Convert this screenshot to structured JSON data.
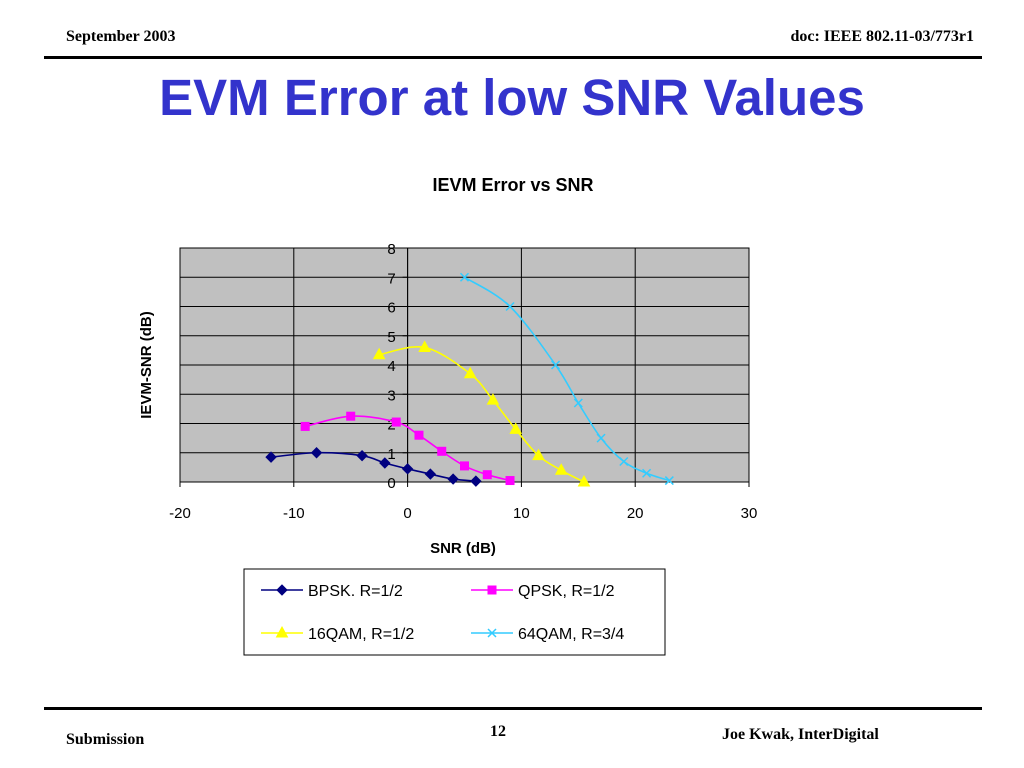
{
  "header": {
    "date": "September 2003",
    "doc": "doc: IEEE 802.11-03/773r1"
  },
  "slide": {
    "title": "EVM Error at low SNR Values"
  },
  "footer": {
    "left": "Submission",
    "page": "12",
    "author": "Joe Kwak, InterDigital"
  },
  "chart_data": {
    "type": "line",
    "title": "IEVM Error vs  SNR",
    "xlabel": "SNR (dB)",
    "ylabel": "IEVM-SNR (dB)",
    "xlim": [
      -20,
      30
    ],
    "ylim": [
      0,
      8
    ],
    "xticks": [
      "-20",
      "-10",
      "0",
      "10",
      "20",
      "30"
    ],
    "yticks": [
      "0",
      "1",
      "2",
      "3",
      "4",
      "5",
      "6",
      "7",
      "8"
    ],
    "grid": "horizontal and vertical",
    "plot_background": "#c0c0c0",
    "legend_position": "bottom",
    "series": [
      {
        "name": "BPSK. R=1/2",
        "color": "#000080",
        "marker": "diamond",
        "x": [
          -12,
          -8,
          -4,
          -2,
          0,
          2,
          4,
          6
        ],
        "y": [
          0.85,
          1.0,
          0.9,
          0.65,
          0.45,
          0.27,
          0.1,
          0.03
        ]
      },
      {
        "name": "QPSK, R=1/2",
        "color": "#ff00ff",
        "marker": "square",
        "x": [
          -9,
          -5,
          -1,
          1,
          3,
          5,
          7,
          9
        ],
        "y": [
          1.9,
          2.25,
          2.05,
          1.6,
          1.05,
          0.55,
          0.25,
          0.05
        ]
      },
      {
        "name": "16QAM, R=1/2",
        "color": "#ffff00",
        "marker": "triangle",
        "x": [
          -2.5,
          1.5,
          5.5,
          7.5,
          9.5,
          11.5,
          13.5,
          15.5
        ],
        "y": [
          4.35,
          4.6,
          3.7,
          2.8,
          1.8,
          0.9,
          0.4,
          0.0
        ]
      },
      {
        "name": "64QAM, R=3/4",
        "color": "#33ccff",
        "marker": "x",
        "x": [
          5,
          9,
          13,
          15,
          17,
          19,
          21,
          23
        ],
        "y": [
          7.0,
          6.0,
          4.0,
          2.7,
          1.5,
          0.7,
          0.3,
          0.05
        ]
      }
    ]
  }
}
